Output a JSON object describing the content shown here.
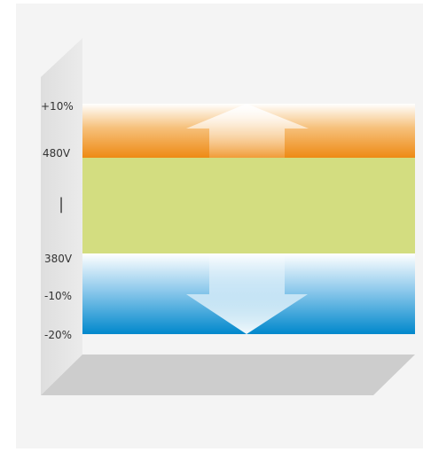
{
  "labels": {
    "plus10": "+10%",
    "high_voltage": "480V",
    "separator": "|",
    "low_voltage": "380V",
    "minus10": "-10%",
    "minus20": "-20%"
  },
  "colors": {
    "upper_band": "#ee8a14",
    "normal_band": "#d3dd80",
    "lower_band": "#0a8bd0",
    "wall": "#e6e6e6",
    "floor": "#cdcdcd"
  },
  "icons": {
    "up": "arrow-up-icon",
    "down": "arrow-down-icon"
  }
}
